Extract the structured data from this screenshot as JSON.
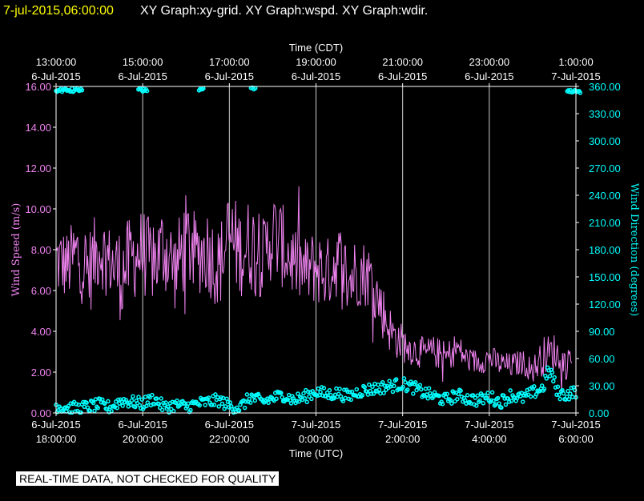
{
  "header": {
    "timestamp": "7-jul-2015,06:00:00",
    "graphs": "XY Graph:xy-grid.  XY Graph:wspd.  XY Graph:wdir."
  },
  "disclaimer": "REAL-TIME DATA, NOT CHECKED FOR QUALITY",
  "colors": {
    "background": "#000000",
    "axis": "#ffffff",
    "wind_speed": "#ee82ee",
    "wind_direction": "#00ffff",
    "timestamp": "#ffff00",
    "text": "#ffffff"
  },
  "chart_data": {
    "type": "line",
    "top_axis": {
      "title": "Time (CDT)",
      "ticks": [
        {
          "hour": 0,
          "time": "13:00:00",
          "date": "6-Jul-2015"
        },
        {
          "hour": 2,
          "time": "15:00:00",
          "date": "6-Jul-2015"
        },
        {
          "hour": 4,
          "time": "17:00:00",
          "date": "6-Jul-2015"
        },
        {
          "hour": 6,
          "time": "19:00:00",
          "date": "6-Jul-2015"
        },
        {
          "hour": 8,
          "time": "21:00:00",
          "date": "6-Jul-2015"
        },
        {
          "hour": 10,
          "time": "23:00:00",
          "date": "6-Jul-2015"
        },
        {
          "hour": 12,
          "time": "1:00:00",
          "date": "7-Jul-2015"
        }
      ]
    },
    "bottom_axis": {
      "title": "Time (UTC)",
      "ticks": [
        {
          "hour": 0,
          "date": "6-Jul-2015",
          "time": "18:00:00"
        },
        {
          "hour": 2,
          "date": "6-Jul-2015",
          "time": "20:00:00"
        },
        {
          "hour": 4,
          "date": "6-Jul-2015",
          "time": "22:00:00"
        },
        {
          "hour": 6,
          "date": "7-Jul-2015",
          "time": "0:00:00"
        },
        {
          "hour": 8,
          "date": "7-Jul-2015",
          "time": "2:00:00"
        },
        {
          "hour": 10,
          "date": "7-Jul-2015",
          "time": "4:00:00"
        },
        {
          "hour": 12,
          "date": "7-Jul-2015",
          "time": "6:00:00"
        }
      ]
    },
    "x_range_hours": [
      0,
      12
    ],
    "grid": "vertical",
    "left_axis": {
      "title": "Wind Speed (m/s)",
      "range": [
        0,
        16
      ],
      "ticks": [
        "0.00",
        "2.00",
        "4.00",
        "6.00",
        "8.00",
        "10.00",
        "12.00",
        "14.00",
        "16.00"
      ]
    },
    "right_axis": {
      "title": "Wind Direction (degrees)",
      "range": [
        0,
        360
      ],
      "ticks": [
        "0.00",
        "30.00",
        "60.00",
        "90.00",
        "120.00",
        "150.00",
        "180.00",
        "210.00",
        "240.00",
        "270.00",
        "300.00",
        "330.00",
        "360.00"
      ]
    },
    "series": [
      {
        "name": "Wind Speed (m/s)",
        "axis": "left",
        "style": "line",
        "x": [
          0.0,
          0.25,
          0.5,
          0.75,
          1.0,
          1.25,
          1.5,
          1.75,
          2.0,
          2.25,
          2.5,
          2.75,
          3.0,
          3.25,
          3.5,
          3.75,
          4.0,
          4.25,
          4.5,
          4.75,
          5.0,
          5.25,
          5.5,
          5.75,
          6.0,
          6.25,
          6.5,
          6.75,
          7.0,
          7.25,
          7.5,
          7.75,
          8.0,
          8.25,
          8.5,
          8.75,
          9.0,
          9.25,
          9.5,
          9.75,
          10.0,
          10.25,
          10.5,
          10.75,
          11.0,
          11.25,
          11.5,
          11.75,
          12.0,
          12.25
        ],
        "y": [
          7.5,
          7.2,
          7.8,
          6.9,
          8.1,
          7.4,
          6.8,
          7.6,
          7.9,
          7.3,
          8.2,
          7.0,
          8.4,
          7.7,
          8.0,
          7.1,
          8.6,
          7.9,
          8.3,
          7.5,
          8.8,
          8.1,
          7.4,
          6.9,
          7.2,
          6.8,
          7.6,
          6.5,
          7.0,
          6.7,
          5.2,
          3.9,
          3.4,
          3.1,
          2.9,
          3.0,
          2.7,
          3.2,
          2.6,
          2.5,
          2.7,
          2.4,
          2.3,
          2.5,
          2.1,
          2.8,
          3.0,
          2.4,
          2.6,
          2.3
        ],
        "noise": [
          1.2,
          1.1,
          1.3,
          1.4,
          1.2,
          1.1,
          1.5,
          1.3,
          1.4,
          1.2,
          1.5,
          1.3,
          1.5,
          1.2,
          1.4,
          1.3,
          1.6,
          1.4,
          1.5,
          1.2,
          1.4,
          1.3,
          1.2,
          1.1,
          1.2,
          1.1,
          1.2,
          1.3,
          1.1,
          1.0,
          0.9,
          0.7,
          0.6,
          0.5,
          0.5,
          0.5,
          0.5,
          0.5,
          0.4,
          0.4,
          0.4,
          0.4,
          0.4,
          0.4,
          0.4,
          0.6,
          0.6,
          0.5,
          0.4,
          0.4
        ]
      },
      {
        "name": "Wind Direction (degrees)",
        "axis": "right",
        "style": "markers",
        "x": [
          0.0,
          0.25,
          0.5,
          0.75,
          1.0,
          1.25,
          1.5,
          1.75,
          2.0,
          2.25,
          2.5,
          2.75,
          3.0,
          3.25,
          3.5,
          3.75,
          4.0,
          4.25,
          4.5,
          4.75,
          5.0,
          5.25,
          5.5,
          5.75,
          6.0,
          6.25,
          6.5,
          6.75,
          7.0,
          7.25,
          7.5,
          7.75,
          8.0,
          8.25,
          8.5,
          8.75,
          9.0,
          9.25,
          9.5,
          9.75,
          10.0,
          10.25,
          10.5,
          10.75,
          11.0,
          11.25,
          11.5,
          11.75,
          12.0,
          12.25
        ],
        "y": [
          8,
          6,
          5,
          7,
          9,
          6,
          14,
          12,
          10,
          16,
          6,
          9,
          7,
          10,
          12,
          14,
          8,
          6,
          18,
          12,
          16,
          20,
          14,
          18,
          24,
          20,
          22,
          18,
          24,
          26,
          28,
          30,
          32,
          28,
          22,
          18,
          14,
          20,
          16,
          14,
          18,
          12,
          20,
          16,
          22,
          28,
          24,
          20,
          24,
          4
        ],
        "wraps": [
          {
            "x_start": 0.0,
            "x_end": 0.6,
            "y": 358
          },
          {
            "x_start": 1.9,
            "x_end": 2.1,
            "y": 358
          },
          {
            "x_start": 3.3,
            "x_end": 3.4,
            "y": 359
          },
          {
            "x_start": 4.5,
            "x_end": 4.6,
            "y": 359
          },
          {
            "x_start": 11.8,
            "x_end": 12.1,
            "y": 356
          }
        ],
        "spike": {
          "x": 11.4,
          "y": 40
        }
      }
    ]
  }
}
